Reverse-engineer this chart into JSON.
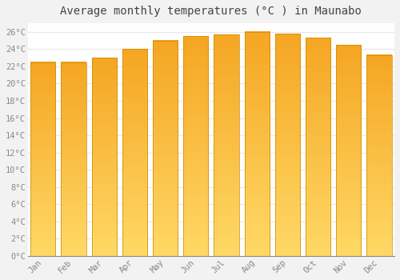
{
  "months": [
    "Jan",
    "Feb",
    "Mar",
    "Apr",
    "May",
    "Jun",
    "Jul",
    "Aug",
    "Sep",
    "Oct",
    "Nov",
    "Dec"
  ],
  "values": [
    22.5,
    22.5,
    23.0,
    24.0,
    25.0,
    25.5,
    25.7,
    26.0,
    25.8,
    25.3,
    24.5,
    23.3
  ],
  "bar_color": "#FBB117",
  "bar_edge_color": "#CC8800",
  "background_color": "#F2F2F2",
  "plot_bg_color": "#FFFFFF",
  "grid_color": "#E8E8E8",
  "title": "Average monthly temperatures (°C ) in Maunabo",
  "title_fontsize": 10,
  "title_color": "#444444",
  "ylim": [
    0,
    27
  ],
  "ytick_step": 2,
  "tick_label_color": "#888888",
  "font_family": "monospace"
}
